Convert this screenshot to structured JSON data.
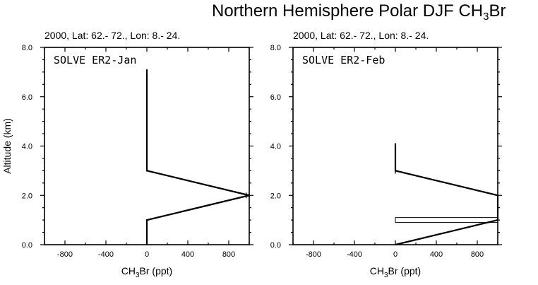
{
  "title": {
    "main": "Northern Hemisphere Polar DJF CH",
    "sub": "3",
    "suffix": "Br"
  },
  "chart_data": [
    {
      "type": "line",
      "subtitle": "2000, Lat: 62.- 72., Lon: 8.- 24.",
      "panel_label": "SOLVE ER2-Jan",
      "xlabel": {
        "pre": "CH",
        "sub": "3",
        "post": "Br (ppt)"
      },
      "ylabel": "Altitude (km)",
      "xlim": [
        -1000,
        1000
      ],
      "ylim": [
        0,
        8
      ],
      "xticks": [
        -800,
        -400,
        0,
        400,
        800
      ],
      "xtick_labels": [
        "-800",
        "-400",
        "0",
        "400",
        "800"
      ],
      "yticks": [
        0,
        2,
        4,
        6,
        8
      ],
      "ytick_labels": [
        "0.0",
        "2.0",
        "4.0",
        "6.0",
        "8.0"
      ],
      "series": [
        {
          "x": [
            0,
            0,
            1000,
            0,
            0,
            0
          ],
          "y": [
            0,
            1,
            2,
            3,
            5,
            7.1
          ]
        }
      ],
      "error_bars": [
        {
          "y": 2,
          "xmin": 970,
          "xmax": 1000
        }
      ]
    },
    {
      "type": "line",
      "subtitle": "2000, Lat: 62.- 72., Lon: 8.- 24.",
      "panel_label": "SOLVE ER2-Feb",
      "xlabel": {
        "pre": "CH",
        "sub": "3",
        "post": "Br (ppt)"
      },
      "ylabel": "",
      "xlim": [
        -1000,
        1000
      ],
      "ylim": [
        0,
        8
      ],
      "xticks": [
        -800,
        -400,
        0,
        400,
        800
      ],
      "xtick_labels": [
        "-800",
        "-400",
        "0",
        "400",
        "800"
      ],
      "yticks": [
        0,
        2,
        4,
        6,
        8
      ],
      "ytick_labels": [
        "0.0",
        "2.0",
        "4.0",
        "6.0",
        "8.0"
      ],
      "series": [
        {
          "x": [
            0,
            1000,
            1000,
            0,
            0
          ],
          "y": [
            0,
            1,
            2,
            3,
            4.1
          ]
        }
      ],
      "range_boxes": [
        {
          "y0": 0.9,
          "y1": 1.1,
          "xmin": 0,
          "xmax": 1000
        }
      ],
      "error_bars": [
        {
          "y": 3,
          "xmin": 0,
          "xmax": 0
        }
      ]
    }
  ]
}
